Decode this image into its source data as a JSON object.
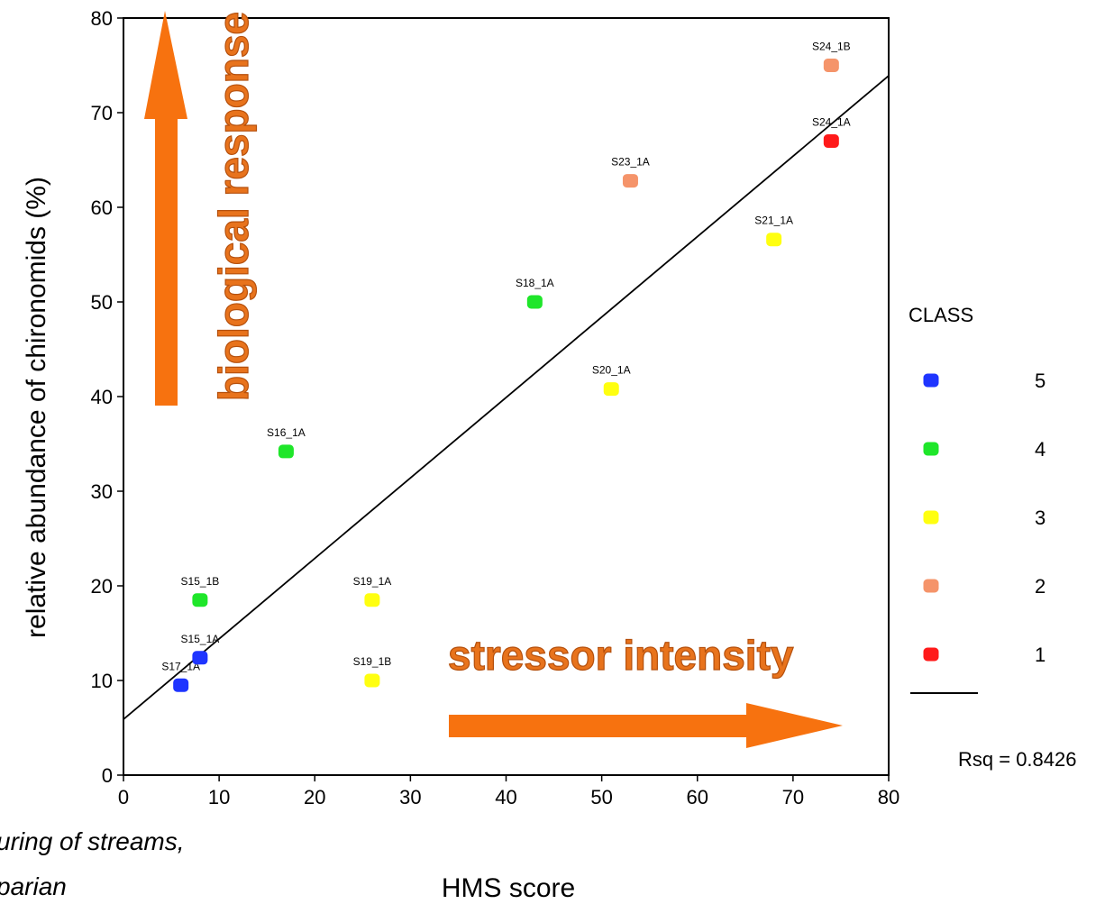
{
  "chart_data": {
    "type": "scatter",
    "title": "",
    "xlabel": "HMS score",
    "ylabel": "relative abundance of chironomids (%)",
    "xlim": [
      0,
      80
    ],
    "ylim": [
      0,
      80
    ],
    "xticks": [
      "0",
      "10",
      "20",
      "30",
      "40",
      "50",
      "60",
      "70",
      "80"
    ],
    "yticks": [
      "0",
      "10",
      "20",
      "30",
      "40",
      "50",
      "60",
      "70",
      "80"
    ],
    "grid": false,
    "points": [
      {
        "label": "S17_1A",
        "x": 6,
        "y": 9.5,
        "class": "5"
      },
      {
        "label": "S15_1A",
        "x": 8,
        "y": 12.4,
        "class": "5"
      },
      {
        "label": "S15_1B",
        "x": 8,
        "y": 18.5,
        "class": "4"
      },
      {
        "label": "S16_1A",
        "x": 17,
        "y": 34.2,
        "class": "4"
      },
      {
        "label": "S18_1A",
        "x": 43,
        "y": 50,
        "class": "4"
      },
      {
        "label": "S19_1A",
        "x": 26,
        "y": 18.5,
        "class": "3"
      },
      {
        "label": "S19_1B",
        "x": 26,
        "y": 10,
        "class": "3"
      },
      {
        "label": "S20_1A",
        "x": 51,
        "y": 40.8,
        "class": "3"
      },
      {
        "label": "S21_1A",
        "x": 68,
        "y": 56.6,
        "class": "3"
      },
      {
        "label": "S23_1A",
        "x": 53,
        "y": 62.8,
        "class": "2"
      },
      {
        "label": "S24_1B",
        "x": 74,
        "y": 75,
        "class": "2"
      },
      {
        "label": "S24_1A",
        "x": 74,
        "y": 67,
        "class": "1"
      }
    ],
    "fit_line": {
      "intercept": 5.9,
      "slope": 0.85,
      "x_range": [
        0,
        80
      ]
    },
    "legend": {
      "title": "CLASS",
      "position": "right",
      "entries": [
        {
          "label": "5",
          "color": "#1f35ff"
        },
        {
          "label": "4",
          "color": "#1fe62a"
        },
        {
          "label": "3",
          "color": "#ffff10"
        },
        {
          "label": "2",
          "color": "#f5946a"
        },
        {
          "label": "1",
          "color": "#ff1a1a"
        }
      ],
      "fit_label": "Rsq = 0.8426"
    },
    "annotations": {
      "biological": "biological response",
      "stressor": "stressor intensity",
      "arrow_color": "#f7720f"
    }
  },
  "fragments": {
    "line1": "uring of streams,",
    "line2": "parian"
  }
}
